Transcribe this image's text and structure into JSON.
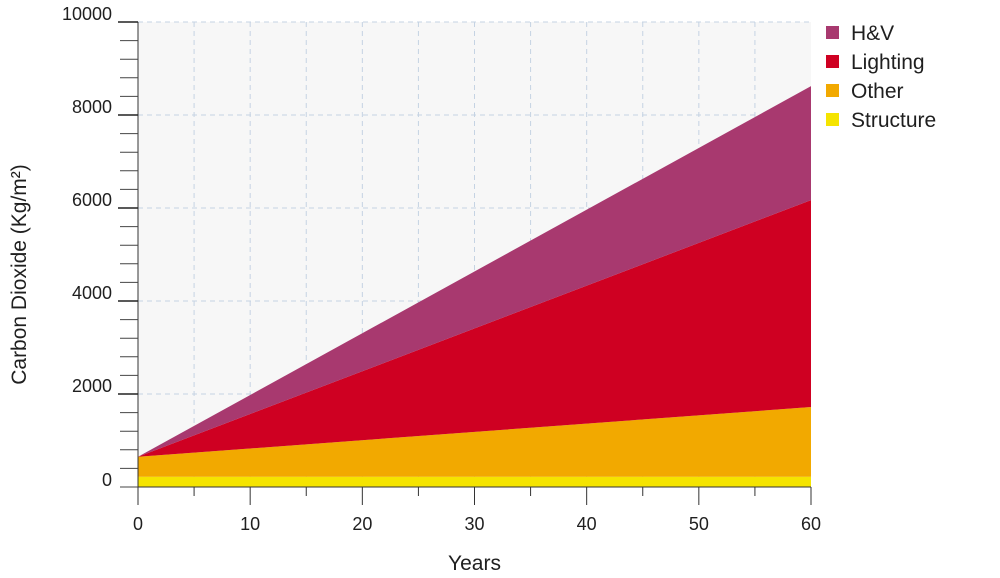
{
  "chart_data": {
    "type": "area",
    "stacked": true,
    "xlabel": "Years",
    "ylabel": "Carbon Dioxide (Kg/m²)",
    "xlim": [
      0,
      60
    ],
    "ylim": [
      0,
      10000
    ],
    "x_ticks": [
      0,
      10,
      20,
      30,
      40,
      50,
      60
    ],
    "y_ticks": [
      0,
      2000,
      4000,
      6000,
      8000,
      10000
    ],
    "x": [
      0,
      60
    ],
    "series": [
      {
        "name": "Structure",
        "color": "#f5e400",
        "values": [
          220,
          220
        ]
      },
      {
        "name": "Other",
        "color": "#f2a900",
        "values": [
          430,
          1500
        ]
      },
      {
        "name": "Lighting",
        "color": "#cf0022",
        "values": [
          0,
          4450
        ]
      },
      {
        "name": "H&V",
        "color": "#a8396f",
        "values": [
          0,
          2450
        ]
      }
    ],
    "legend_order": [
      "H&V",
      "Lighting",
      "Other",
      "Structure"
    ],
    "legend_position": "top-right",
    "grid": true,
    "plot_background": "#f7f7f7",
    "grid_color": "#c5d3e3"
  }
}
